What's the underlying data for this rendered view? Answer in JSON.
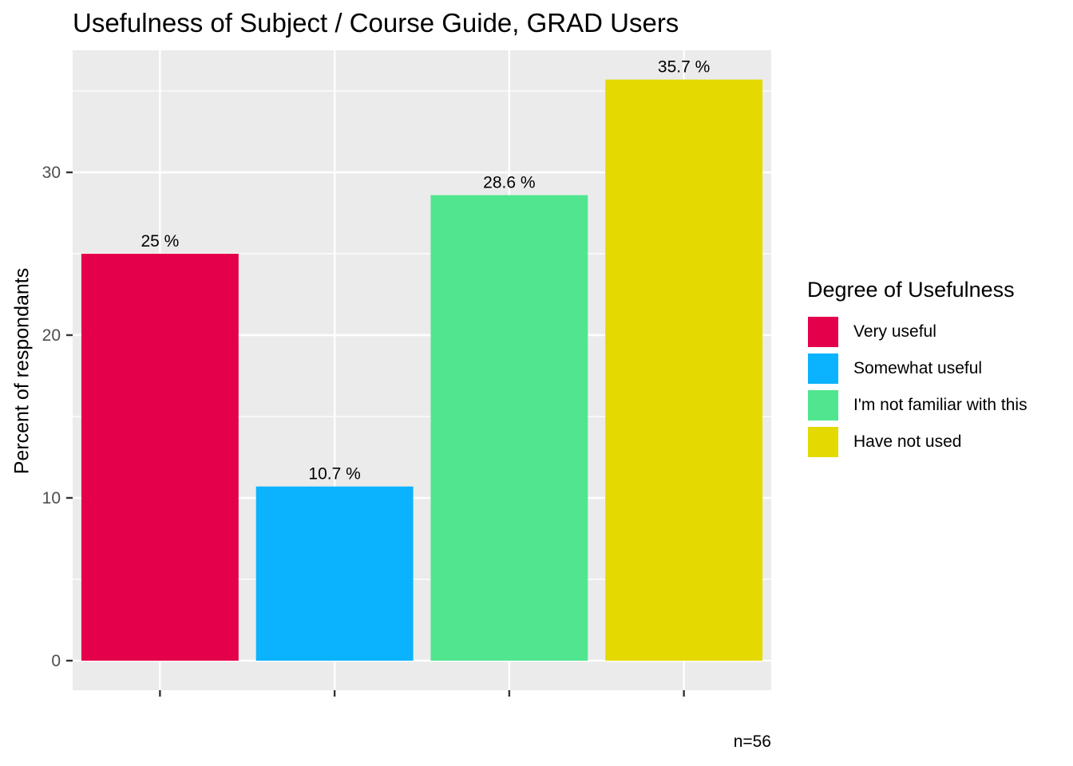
{
  "chart_data": {
    "type": "bar",
    "title": "Usefulness of Subject / Course Guide,  GRAD Users",
    "xlabel": "",
    "ylabel": "Percent of respondants",
    "caption": "n=56",
    "ylim": [
      0,
      37.5
    ],
    "yticks": [
      0,
      10,
      20,
      30
    ],
    "grid": true,
    "legend_position": "right",
    "legend_title": "Degree of Usefulness",
    "categories": [
      "Very useful",
      "Somewhat useful",
      "I'm not familiar with this",
      "Have not used"
    ],
    "values": [
      25,
      10.7,
      28.6,
      35.7
    ],
    "data_labels": [
      "25 %",
      "10.7 %",
      "28.6 %",
      "35.7 %"
    ],
    "colors": [
      "#E4004B",
      "#0BB3FE",
      "#50E68F",
      "#E4D900"
    ]
  }
}
